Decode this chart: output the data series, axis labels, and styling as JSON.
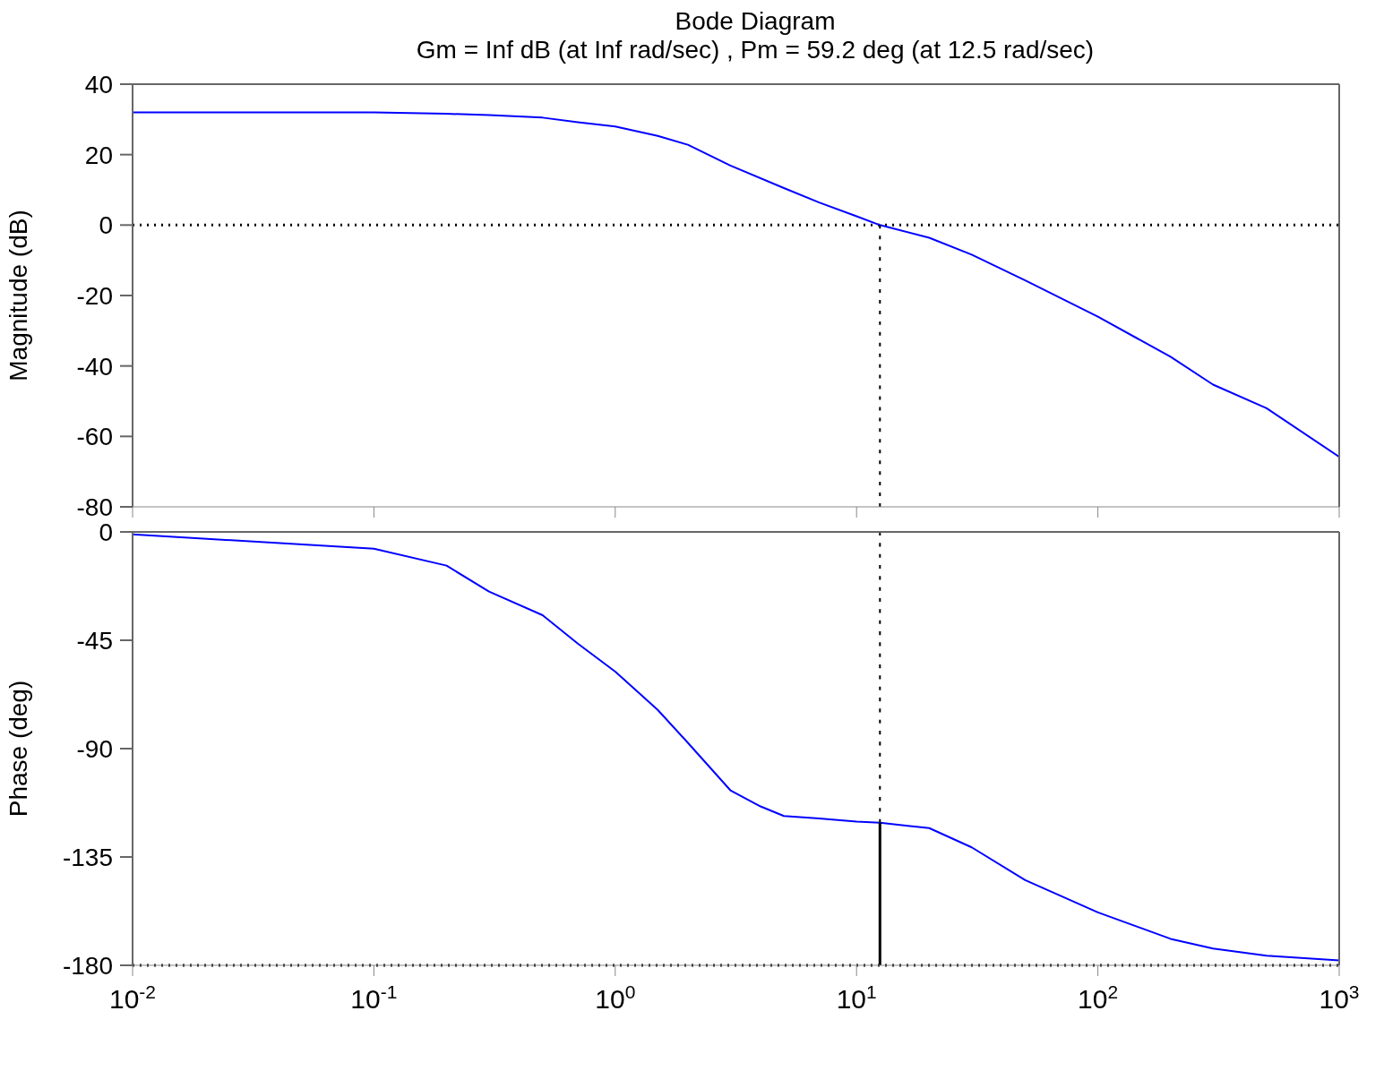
{
  "chart_data": [
    {
      "type": "line",
      "title": "Bode Diagram",
      "subtitle": "Gm = Inf dB (at Inf rad/sec) ,  Pm = 59.2 deg (at 12.5 rad/sec)",
      "ylabel": "Magnitude (dB)",
      "log": "x",
      "xlim": [
        0.01,
        1000
      ],
      "xticks": [
        {
          "value": 0.01,
          "label": null
        },
        {
          "value": 0.1,
          "label": null
        },
        {
          "value": 1,
          "label": null
        },
        {
          "value": 10,
          "label": null
        },
        {
          "value": 100,
          "label": null
        },
        {
          "value": 1000,
          "label": null
        }
      ],
      "ylim": [
        -80,
        40
      ],
      "yticks": [
        -80,
        -60,
        -40,
        -20,
        0,
        20,
        40
      ],
      "tick_labels": "y",
      "series": [
        {
          "color": "#0000ff",
          "x": [
            0.01,
            0.1,
            0.2,
            0.3,
            0.5,
            0.7,
            1,
            1.5,
            2,
            3,
            5,
            7,
            10,
            12.5,
            20,
            30,
            50,
            100,
            200,
            300,
            500,
            1000
          ],
          "values": [
            32,
            32,
            31.6,
            31.2,
            30.5,
            29.2,
            28,
            25.3,
            22.8,
            16.9,
            10.5,
            6.4,
            2.5,
            0,
            -3.6,
            -8.4,
            -15.7,
            -26,
            -37.4,
            -45.3,
            -52,
            -65.8
          ]
        },
        {
          "color": "#000000",
          "line_style": "dotted",
          "x": [
            12.5,
            12.5
          ],
          "values": [
            -80,
            0
          ]
        }
      ],
      "ref_lines": [
        {
          "axis": "y",
          "value": 0,
          "color": "#000000",
          "line_style": "dotted"
        }
      ]
    },
    {
      "type": "line",
      "ylabel": "Phase (deg)",
      "log": "x",
      "xlim": [
        0.01,
        1000
      ],
      "xticks": [
        {
          "value": 0.01,
          "label": "10$^{-2}$"
        },
        {
          "value": 0.1,
          "label": "10$^{-1}$"
        },
        {
          "value": 1,
          "label": "10$^{0}$"
        },
        {
          "value": 10,
          "label": "10$^{1}$"
        },
        {
          "value": 100,
          "label": "10$^{2}$"
        },
        {
          "value": 1000,
          "label": "10$^{3}$"
        }
      ],
      "ylim": [
        -180,
        0
      ],
      "yticks": [
        -180,
        -135,
        -90,
        -45,
        0
      ],
      "series": [
        {
          "color": "#0000ff",
          "x": [
            0.01,
            0.1,
            0.2,
            0.3,
            0.5,
            0.7,
            1,
            1.5,
            2,
            3,
            4,
            5,
            7,
            10,
            12.5,
            20,
            30,
            50,
            100,
            200,
            300,
            500,
            1000
          ],
          "values": [
            -1,
            -7,
            -14,
            -24.8,
            -34.6,
            -46.4,
            -58,
            -73.9,
            -87.6,
            -107.3,
            -114,
            -118,
            -119,
            -120.3,
            -120.8,
            -123,
            -131,
            -144.6,
            -158,
            -169,
            -173,
            -176,
            -178
          ]
        },
        {
          "color": "#000000",
          "line_style": "dotted",
          "x": [
            12.5,
            12.5
          ],
          "values": [
            0,
            -120.8
          ]
        },
        {
          "color": "#000000",
          "line_style": "solid",
          "x": [
            12.5,
            12.5
          ],
          "values": [
            -120.8,
            -180
          ]
        }
      ],
      "ref_lines": [
        {
          "axis": "y",
          "value": -180,
          "color": "#000000",
          "line_style": "dotted"
        }
      ]
    }
  ]
}
